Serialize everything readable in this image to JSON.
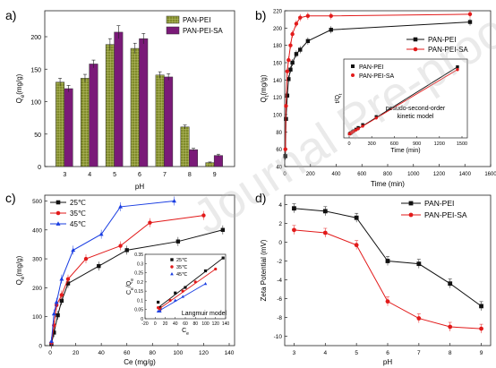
{
  "watermark": "Journal Pre-proof",
  "chart_data": [
    {
      "panel": "a)",
      "type": "bar",
      "xlabel": "pH",
      "ylabel": "Q",
      "ylabel_sub": "e",
      "ylabel_unit": "(mg/g)",
      "ylim": [
        0,
        240
      ],
      "yticks": [
        0,
        50,
        100,
        150,
        200
      ],
      "categories": [
        "3",
        "4",
        "5",
        "6",
        "7",
        "8",
        "9"
      ],
      "legend_position": "top-right",
      "series": [
        {
          "name": "PAN-PEI",
          "color": "#7f8a2a",
          "pattern": "grid",
          "values": [
            130,
            136,
            188,
            182,
            141,
            61,
            6
          ],
          "errors": [
            6,
            6,
            9,
            8,
            5,
            3,
            1
          ]
        },
        {
          "name": "PAN-PEI-SA",
          "color": "#7a1a78",
          "pattern": "solid",
          "values": [
            120,
            158,
            207,
            197,
            138,
            26,
            17
          ],
          "errors": [
            5,
            6,
            10,
            8,
            5,
            2,
            2
          ]
        }
      ]
    },
    {
      "panel": "b)",
      "type": "line",
      "xlabel": "Time (min)",
      "ylabel": "Q",
      "ylabel_sub": "t",
      "ylabel_unit": "(mg/g)",
      "xlim": [
        0,
        1600
      ],
      "ylim": [
        40,
        220
      ],
      "xticks": [
        0,
        200,
        400,
        600,
        800,
        1000,
        1200,
        1400,
        1600
      ],
      "yticks": [
        40,
        60,
        80,
        100,
        120,
        140,
        160,
        180,
        200,
        220
      ],
      "legend_position": "top-right",
      "series": [
        {
          "name": "PAN-PEI",
          "color": "#111111",
          "marker": "square",
          "x": [
            5,
            10,
            20,
            30,
            45,
            60,
            90,
            120,
            180,
            360,
            1440
          ],
          "y": [
            52,
            95,
            122,
            141,
            152,
            160,
            170,
            175,
            185,
            198,
            207
          ]
        },
        {
          "name": "PAN-PEI-SA",
          "color": "#e21a1a",
          "marker": "circle",
          "x": [
            5,
            10,
            20,
            30,
            45,
            60,
            90,
            120,
            180,
            360,
            1440
          ],
          "y": [
            60,
            110,
            150,
            163,
            180,
            193,
            205,
            212,
            214,
            214,
            216
          ]
        }
      ],
      "inset": {
        "ylabel": "t/Q",
        "ylabel_sub": "t",
        "xlabel": "Time (min)",
        "xlim": [
          0,
          1500
        ],
        "xticks": [
          0,
          300,
          600,
          900,
          1200,
          1500
        ],
        "annotation_line1": "pesudo-second-order",
        "annotation_line2": "kinetic model",
        "legend_position": "top-left",
        "series": [
          {
            "name": "PAN-PEI",
            "color": "#111111",
            "marker": "square",
            "x": [
              5,
              10,
              20,
              30,
              45,
              60,
              90,
              120,
              180,
              360,
              1440
            ],
            "y": [
              0.05,
              0.08,
              0.13,
              0.18,
              0.27,
              0.35,
              0.52,
              0.69,
              0.99,
              1.82,
              6.95
            ]
          },
          {
            "name": "PAN-PEI-SA",
            "color": "#e21a1a",
            "marker": "circle",
            "x": [
              5,
              10,
              20,
              30,
              45,
              60,
              90,
              120,
              180,
              360,
              1440
            ],
            "y": [
              0.04,
              0.07,
              0.12,
              0.17,
              0.24,
              0.31,
              0.44,
              0.57,
              0.84,
              1.68,
              6.67
            ]
          }
        ]
      }
    },
    {
      "panel": "c)",
      "type": "line",
      "xlabel": "Ce (mg/g)",
      "ylabel": "Q",
      "ylabel_sub": "e",
      "ylabel_unit": "(mg/g)",
      "xlim": [
        0,
        140
      ],
      "ylim": [
        0,
        520
      ],
      "xticks": [
        0,
        20,
        40,
        60,
        80,
        100,
        120,
        140
      ],
      "yticks": [
        0,
        100,
        200,
        300,
        400,
        500
      ],
      "legend_position": "top-left",
      "series": [
        {
          "name": "25℃",
          "color": "#111111",
          "marker": "square",
          "x": [
            1,
            3,
            6,
            9,
            14,
            38,
            60,
            100,
            135
          ],
          "y": [
            5,
            45,
            105,
            155,
            215,
            275,
            330,
            360,
            400
          ]
        },
        {
          "name": "35℃",
          "color": "#e21a1a",
          "marker": "circle",
          "x": [
            1,
            3,
            5,
            9,
            14,
            28,
            55,
            78,
            120
          ],
          "y": [
            10,
            70,
            140,
            175,
            230,
            300,
            345,
            425,
            450
          ]
        },
        {
          "name": "45℃",
          "color": "#1a3ee2",
          "marker": "triangle",
          "x": [
            1,
            3,
            5,
            9,
            18,
            40,
            55,
            97
          ],
          "y": [
            15,
            110,
            150,
            230,
            330,
            385,
            480,
            500
          ]
        }
      ],
      "inset": {
        "xlabel": "C",
        "xlabel_sub": "e",
        "ylabel": "C",
        "ylabel_sub": "e",
        "ylabel_tail": "/Q",
        "ylabel_tail_sub": "e",
        "xlim": [
          -20,
          140
        ],
        "ylim": [
          0.0,
          0.35
        ],
        "xticks": [
          -20,
          0,
          20,
          40,
          60,
          80,
          100,
          120,
          140
        ],
        "yticks": [
          0.0,
          0.05,
          0.1,
          0.15,
          0.2,
          0.25,
          0.3,
          0.35
        ],
        "annotation": "Langmuir model",
        "legend_position": "top-left",
        "series": [
          {
            "name": "25℃",
            "color": "#111111",
            "marker": "square",
            "x": [
              6,
              10,
              40,
              60,
              100,
              135
            ],
            "y": [
              0.09,
              0.06,
              0.14,
              0.17,
              0.26,
              0.33
            ]
          },
          {
            "name": "35℃",
            "color": "#e21a1a",
            "marker": "circle",
            "x": [
              6,
              10,
              30,
              55,
              80,
              120
            ],
            "y": [
              0.06,
              0.05,
              0.1,
              0.15,
              0.2,
              0.27
            ]
          },
          {
            "name": "45℃",
            "color": "#1a3ee2",
            "marker": "triangle",
            "x": [
              6,
              10,
              40,
              55,
              100
            ],
            "y": [
              0.04,
              0.04,
              0.1,
              0.12,
              0.19
            ]
          }
        ]
      }
    },
    {
      "panel": "d)",
      "type": "line",
      "xlabel": "pH",
      "ylabel": "Zeta Potential (mV)",
      "xlim": [
        3,
        9
      ],
      "ylim": [
        -11,
        5
      ],
      "xticks": [
        3,
        4,
        5,
        6,
        7,
        8,
        9
      ],
      "yticks": [
        -10,
        -8,
        -6,
        -4,
        -2,
        0,
        2,
        4
      ],
      "legend_position": "top-right",
      "series": [
        {
          "name": "PAN-PEI",
          "color": "#111111",
          "marker": "square",
          "x": [
            3,
            4,
            5,
            6,
            7,
            8,
            9
          ],
          "y": [
            3.6,
            3.3,
            2.6,
            -2.0,
            -2.3,
            -4.4,
            -6.8
          ]
        },
        {
          "name": "PAN-PEI-SA",
          "color": "#e21a1a",
          "marker": "circle",
          "x": [
            3,
            4,
            5,
            6,
            7,
            8,
            9
          ],
          "y": [
            1.3,
            1.0,
            -0.3,
            -6.3,
            -8.1,
            -9.0,
            -9.2
          ]
        }
      ]
    }
  ]
}
